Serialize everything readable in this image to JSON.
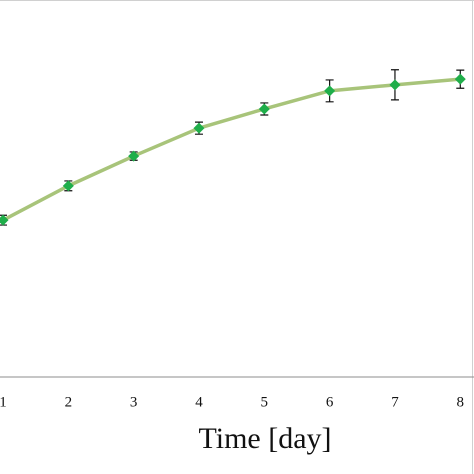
{
  "chart_data": {
    "type": "line",
    "x_label": "Time [day]",
    "x": [
      1,
      2,
      3,
      4,
      5,
      6,
      7,
      8
    ],
    "series": [
      {
        "color": "#a8c47a",
        "marker_color": "#1fae4a",
        "values": [
          41.6,
          50.7,
          58.6,
          66.0,
          71.1,
          75.9,
          77.5,
          79.0
        ],
        "errors": [
          1.3,
          1.3,
          1.1,
          1.6,
          1.6,
          2.9,
          4.0,
          2.4
        ]
      }
    ],
    "xlim": [
      0.954,
      8.21
    ],
    "xticks": [
      1,
      2,
      3,
      4,
      5,
      6,
      7,
      8
    ],
    "ylim": [
      0,
      100
    ]
  }
}
